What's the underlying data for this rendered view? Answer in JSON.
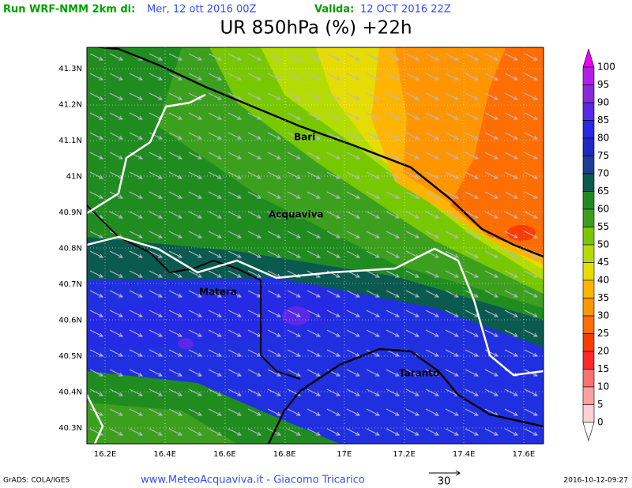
{
  "header": {
    "run_label": "Run WRF-NMM 2km di:",
    "run_date": "Mer, 12 ott 2016 00Z",
    "valid_label": "Valida:",
    "valid_date": "12 OCT 2016 22Z"
  },
  "title": "UR 850hPa (%) +22h",
  "map": {
    "lat_labels": [
      "41.3N",
      "41.2N",
      "41.1N",
      "41N",
      "40.9N",
      "40.8N",
      "40.7N",
      "40.6N",
      "40.5N",
      "40.4N",
      "40.3N"
    ],
    "lon_labels": [
      "16.2E",
      "16.4E",
      "16.6E",
      "16.8E",
      "17E",
      "17.2E",
      "17.4E",
      "17.6E"
    ],
    "places": [
      "Bari",
      "Acquaviva",
      "Matera",
      "Taranto"
    ]
  },
  "colorbar": {
    "labels": [
      "100",
      "95",
      "90",
      "85",
      "80",
      "75",
      "70",
      "65",
      "60",
      "55",
      "50",
      "45",
      "40",
      "35",
      "30",
      "25",
      "20",
      "15",
      "10",
      "5",
      "0"
    ],
    "colors": [
      "#f000f0",
      "#b41ee6",
      "#8c28dc",
      "#5a28e6",
      "#2828e6",
      "#1e28c8",
      "#1e3c96",
      "#0a5a50",
      "#208c20",
      "#3ca01e",
      "#78c800",
      "#b4dc00",
      "#e6dc00",
      "#ffb400",
      "#ff9600",
      "#ff6e00",
      "#ff3c00",
      "#ff2828",
      "#ff7070",
      "#ffa0a0",
      "#ffd0d0",
      "#ffffff"
    ]
  },
  "footer": {
    "software": "GrADS: COLA/IGES",
    "credit": "www.MeteoAcquaviva.it - Giacomo Tricarico",
    "vector_scale": "30",
    "timestamp": "2016-10-12-09:27"
  }
}
